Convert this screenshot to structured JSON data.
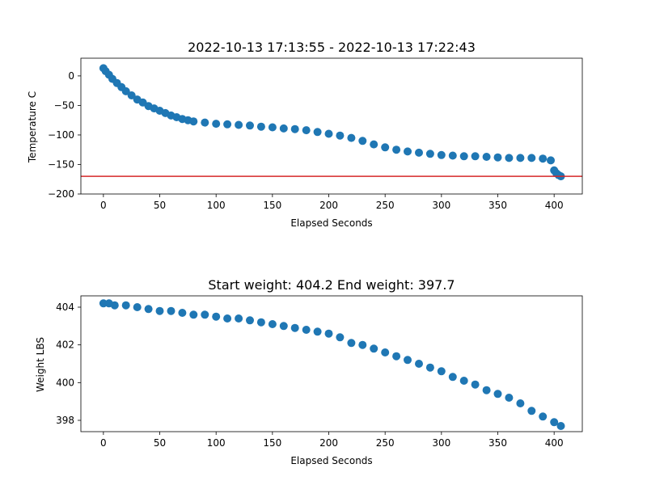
{
  "chart_data": [
    {
      "type": "scatter",
      "title": "2022-10-13 17:13:55 - 2022-10-13 17:22:43",
      "xlabel": "Elapsed Seconds",
      "ylabel": "Temperature C",
      "xlim": [
        -20,
        425
      ],
      "ylim": [
        -200,
        30
      ],
      "xticks": [
        0,
        50,
        100,
        150,
        200,
        250,
        300,
        350,
        400
      ],
      "yticks": [
        0,
        -50,
        -100,
        -150,
        -200
      ],
      "grid": false,
      "marker_color": "#1f77b4",
      "reference_line": {
        "y": -170,
        "color": "#d62728"
      },
      "series": [
        {
          "x": [
            0,
            2,
            5,
            8,
            12,
            16,
            20,
            25,
            30,
            35,
            40,
            45,
            50,
            55,
            60,
            65,
            70,
            75,
            80,
            90,
            100,
            110,
            120,
            130,
            140,
            150,
            160,
            170,
            180,
            190,
            200,
            210,
            220,
            230,
            240,
            250,
            260,
            270,
            280,
            290,
            300,
            310,
            320,
            330,
            340,
            350,
            360,
            370,
            380,
            390,
            397,
            400,
            402,
            404,
            406
          ],
          "y": [
            13,
            8,
            2,
            -5,
            -12,
            -19,
            -26,
            -33,
            -40,
            -45,
            -51,
            -55,
            -59,
            -63,
            -67,
            -70,
            -73,
            -75,
            -77,
            -79,
            -81,
            -82,
            -83,
            -84,
            -86,
            -87,
            -89,
            -90,
            -92,
            -95,
            -98,
            -101,
            -105,
            -110,
            -116,
            -121,
            -125,
            -128,
            -130,
            -132,
            -134,
            -135,
            -136,
            -136,
            -137,
            -138,
            -139,
            -139,
            -139,
            -140,
            -143,
            -160,
            -165,
            -168,
            -170
          ]
        }
      ]
    },
    {
      "type": "scatter",
      "title": "Start weight: 404.2 End weight: 397.7",
      "xlabel": "Elapsed Seconds",
      "ylabel": "Weight LBS",
      "xlim": [
        -20,
        425
      ],
      "ylim": [
        397.4,
        404.6
      ],
      "xticks": [
        0,
        50,
        100,
        150,
        200,
        250,
        300,
        350,
        400
      ],
      "yticks": [
        404,
        402,
        400,
        398
      ],
      "grid": false,
      "marker_color": "#1f77b4",
      "series": [
        {
          "x": [
            0,
            5,
            10,
            20,
            30,
            40,
            50,
            60,
            70,
            80,
            90,
            100,
            110,
            120,
            130,
            140,
            150,
            160,
            170,
            180,
            190,
            200,
            210,
            220,
            230,
            240,
            250,
            260,
            270,
            280,
            290,
            300,
            310,
            320,
            330,
            340,
            350,
            360,
            370,
            380,
            390,
            400,
            406
          ],
          "y": [
            404.2,
            404.2,
            404.1,
            404.1,
            404.0,
            403.9,
            403.8,
            403.8,
            403.7,
            403.6,
            403.6,
            403.5,
            403.4,
            403.4,
            403.3,
            403.2,
            403.1,
            403.0,
            402.9,
            402.8,
            402.7,
            402.6,
            402.4,
            402.1,
            402.0,
            401.8,
            401.6,
            401.4,
            401.2,
            401.0,
            400.8,
            400.6,
            400.3,
            400.1,
            399.9,
            399.6,
            399.4,
            399.2,
            398.9,
            398.5,
            398.2,
            397.9,
            397.7
          ]
        }
      ]
    }
  ]
}
